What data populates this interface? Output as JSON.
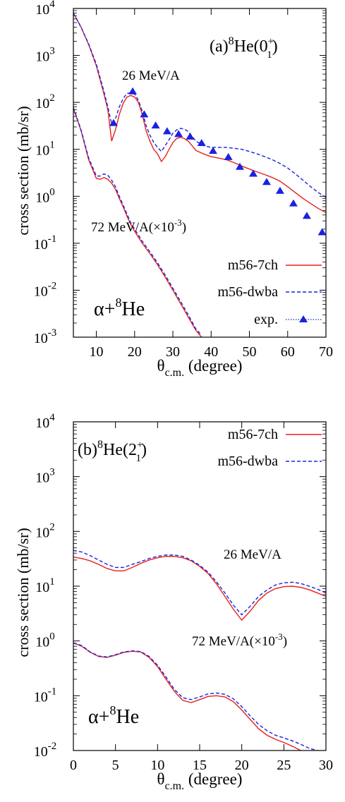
{
  "chart_data": [
    {
      "type": "line",
      "panel_label": "(a)",
      "state": {
        "pre": "8",
        "base": "He(0",
        "sub": "1",
        "sup": "+",
        "post": ")"
      },
      "xlabel": {
        "main": "θ",
        "sub": "c.m.",
        "rest": " (degree)"
      },
      "ylabel": "cross section (mb/sr)",
      "x_range": [
        4,
        70
      ],
      "y_range": [
        0.001,
        10000
      ],
      "y_scale": "log",
      "x_ticks": [
        10,
        20,
        30,
        40,
        50,
        60,
        70
      ],
      "y_ticks": [
        {
          "value": 0.001,
          "mantissa": "10",
          "exp": "-3"
        },
        {
          "value": 0.01,
          "mantissa": "10",
          "exp": "-2"
        },
        {
          "value": 0.1,
          "mantissa": "10",
          "exp": "-1"
        },
        {
          "value": 1,
          "mantissa": "10",
          "exp": "0"
        },
        {
          "value": 10,
          "mantissa": "10",
          "exp": "1"
        },
        {
          "value": 100,
          "mantissa": "10",
          "exp": "2"
        },
        {
          "value": 1000,
          "mantissa": "10",
          "exp": "3"
        },
        {
          "value": 10000,
          "mantissa": "10",
          "exp": "4"
        }
      ],
      "annotations": {
        "energy_high": "26 MeV/A",
        "energy_low_pre": "72 MeV/A(×10",
        "energy_low_exp": "-3",
        "energy_low_post": ")",
        "system_pre": "α+",
        "system_sup": "8",
        "system_post": "He"
      },
      "legend": [
        {
          "label": "m56-7ch",
          "style": "solid",
          "color": "#e8201a"
        },
        {
          "label": "m56-dwba",
          "style": "dashed",
          "color": "#1a22e0"
        },
        {
          "label": "exp.",
          "style": "dotted-triangle",
          "color": "#1a22e0"
        }
      ],
      "series": [
        {
          "name": "m56-7ch",
          "group": "26 MeV/A",
          "color": "#e8201a",
          "style": "solid",
          "x": [
            4,
            6,
            8,
            10,
            12,
            13,
            14,
            15,
            16,
            17,
            18,
            19,
            20,
            21,
            22,
            23,
            24,
            25,
            26,
            27,
            28,
            29,
            30,
            31,
            32,
            33,
            34,
            35,
            36,
            38,
            40,
            42,
            44,
            46,
            48,
            50,
            52,
            54,
            56,
            58,
            60,
            62,
            64,
            66,
            68,
            70
          ],
          "y": [
            8000,
            4000,
            1700,
            600,
            150,
            70,
            15,
            26,
            55,
            95,
            130,
            140,
            130,
            100,
            55,
            25,
            15,
            10,
            8,
            5.5,
            7,
            10,
            14,
            17,
            18,
            17,
            15,
            12,
            9.5,
            8,
            7,
            6.5,
            6,
            5.2,
            4.4,
            3.8,
            3.3,
            2.9,
            2.5,
            2.1,
            1.6,
            1.2,
            0.9,
            0.7,
            0.55,
            0.45
          ]
        },
        {
          "name": "m56-dwba",
          "group": "26 MeV/A",
          "color": "#1a22e0",
          "style": "dashed",
          "x": [
            4,
            6,
            8,
            10,
            12,
            13,
            14,
            15,
            16,
            17,
            18,
            19,
            20,
            21,
            22,
            23,
            24,
            25,
            26,
            27,
            28,
            29,
            30,
            31,
            32,
            33,
            34,
            35,
            36,
            38,
            40,
            42,
            44,
            46,
            48,
            50,
            52,
            54,
            56,
            58,
            60,
            62,
            64,
            66,
            68,
            70
          ],
          "y": [
            8000,
            4000,
            1750,
            650,
            170,
            80,
            35,
            45,
            80,
            120,
            155,
            160,
            150,
            110,
            65,
            32,
            20,
            14,
            11,
            9,
            12,
            16,
            22,
            26,
            28,
            27,
            24,
            19,
            15,
            12,
            11,
            11,
            11,
            10.5,
            10,
            9,
            8,
            7,
            6,
            5,
            4,
            3,
            2.2,
            1.6,
            1.2,
            0.95
          ]
        },
        {
          "name": "m56-7ch",
          "group": "72 MeV/A",
          "color": "#e8201a",
          "style": "solid",
          "x": [
            4,
            6,
            8,
            10,
            11,
            12,
            13,
            14,
            15,
            16,
            17,
            18,
            19,
            20,
            22,
            24,
            26,
            28,
            30,
            32,
            34,
            36,
            37.5
          ],
          "y": [
            75,
            25,
            6,
            2.4,
            2.3,
            2.5,
            2.3,
            1.9,
            1.4,
            0.9,
            0.6,
            0.38,
            0.25,
            0.18,
            0.1,
            0.06,
            0.035,
            0.019,
            0.01,
            0.0052,
            0.0027,
            0.0014,
            0.001
          ]
        },
        {
          "name": "m56-dwba",
          "group": "72 MeV/A",
          "color": "#1a22e0",
          "style": "dashed",
          "x": [
            4,
            6,
            8,
            10,
            11,
            12,
            13,
            14,
            15,
            16,
            17,
            18,
            19,
            20,
            22,
            24,
            26,
            28,
            30,
            32,
            34,
            36,
            37.5
          ],
          "y": [
            78,
            26,
            6.5,
            2.7,
            2.7,
            3.0,
            2.8,
            2.2,
            1.6,
            1.0,
            0.65,
            0.42,
            0.27,
            0.2,
            0.11,
            0.066,
            0.038,
            0.021,
            0.011,
            0.0058,
            0.003,
            0.0015,
            0.0011
          ]
        },
        {
          "name": "exp.",
          "group": "26 MeV/A",
          "color": "#1a22e0",
          "style": "triangle",
          "x": [
            14.5,
            19.5,
            22.5,
            25.5,
            28.5,
            31.5,
            34.5,
            37.5,
            40.5,
            44.5,
            47.5,
            51.0,
            54.5,
            58.0,
            61.5,
            65.0,
            69.0
          ],
          "y": [
            36,
            170,
            55,
            32,
            24,
            21,
            18.5,
            13.5,
            9.2,
            6.8,
            4.2,
            3.0,
            2.0,
            1.3,
            0.7,
            0.38,
            0.17
          ]
        }
      ]
    },
    {
      "type": "line",
      "panel_label": "(b)",
      "state": {
        "pre": "8",
        "base": "He(2",
        "sub": "1",
        "sup": "+",
        "post": ")"
      },
      "xlabel": {
        "main": "θ",
        "sub": "c.m.",
        "rest": " (degree)"
      },
      "ylabel": "cross section (mb/sr)",
      "x_range": [
        0,
        30
      ],
      "y_range": [
        0.01,
        10000
      ],
      "y_scale": "log",
      "x_ticks": [
        0,
        5,
        10,
        15,
        20,
        25,
        30
      ],
      "y_ticks": [
        {
          "value": 0.01,
          "mantissa": "10",
          "exp": "-2"
        },
        {
          "value": 0.1,
          "mantissa": "10",
          "exp": "-1"
        },
        {
          "value": 1,
          "mantissa": "10",
          "exp": "0"
        },
        {
          "value": 10,
          "mantissa": "10",
          "exp": "1"
        },
        {
          "value": 100,
          "mantissa": "10",
          "exp": "2"
        },
        {
          "value": 1000,
          "mantissa": "10",
          "exp": "3"
        },
        {
          "value": 10000,
          "mantissa": "10",
          "exp": "4"
        }
      ],
      "annotations": {
        "energy_high": "26 MeV/A",
        "energy_low_pre": "72 MeV/A(×10",
        "energy_low_exp": "-3",
        "energy_low_post": ")",
        "system_pre": "α+",
        "system_sup": "8",
        "system_post": "He"
      },
      "legend": [
        {
          "label": "m56-7ch",
          "style": "solid",
          "color": "#e8201a"
        },
        {
          "label": "m56-dwba",
          "style": "dashed",
          "color": "#1a22e0"
        }
      ],
      "series": [
        {
          "name": "m56-7ch",
          "group": "26 MeV/A",
          "color": "#e8201a",
          "style": "solid",
          "x": [
            0,
            1,
            2,
            3,
            4,
            5,
            6,
            7,
            8,
            9,
            10,
            11,
            12,
            13,
            14,
            15,
            16,
            17,
            18,
            19,
            20,
            21,
            22,
            23,
            24,
            25,
            26,
            27,
            28,
            29,
            30
          ],
          "y": [
            34,
            32,
            29,
            25,
            21,
            19,
            19,
            22,
            26,
            30,
            33,
            35,
            35,
            33,
            29,
            23,
            17,
            11,
            6.5,
            3.8,
            2.4,
            3.5,
            5.5,
            7.5,
            9,
            9.8,
            10,
            9.5,
            8.6,
            7.5,
            6.5
          ]
        },
        {
          "name": "m56-dwba",
          "group": "26 MeV/A",
          "color": "#1a22e0",
          "style": "dashed",
          "x": [
            0,
            1,
            2,
            3,
            4,
            5,
            6,
            7,
            8,
            9,
            10,
            11,
            12,
            13,
            14,
            15,
            16,
            17,
            18,
            19,
            20,
            21,
            22,
            23,
            24,
            25,
            26,
            27,
            28,
            29,
            30
          ],
          "y": [
            45,
            42,
            36,
            30,
            25,
            22,
            22,
            25,
            28,
            32,
            35,
            37,
            37,
            35,
            30,
            24,
            18,
            12,
            7.5,
            4.5,
            3.0,
            4.3,
            6.5,
            8.5,
            10.5,
            11.5,
            11.8,
            11.2,
            10,
            8.8,
            7.5
          ]
        },
        {
          "name": "m56-7ch",
          "group": "72 MeV/A",
          "color": "#e8201a",
          "style": "solid",
          "x": [
            0,
            1,
            2,
            3,
            4,
            5,
            6,
            7,
            8,
            9,
            10,
            11,
            12,
            13,
            14,
            15,
            16,
            17,
            18,
            19,
            20,
            21,
            22,
            23,
            24,
            25,
            26,
            27,
            28
          ],
          "y": [
            0.92,
            0.8,
            0.62,
            0.52,
            0.5,
            0.55,
            0.62,
            0.65,
            0.63,
            0.5,
            0.34,
            0.2,
            0.12,
            0.082,
            0.075,
            0.085,
            0.097,
            0.1,
            0.095,
            0.078,
            0.055,
            0.037,
            0.025,
            0.019,
            0.016,
            0.014,
            0.012,
            0.01,
            0.0088
          ]
        },
        {
          "name": "m56-dwba",
          "group": "72 MeV/A",
          "color": "#1a22e0",
          "style": "dashed",
          "x": [
            0,
            1,
            2,
            3,
            4,
            5,
            6,
            7,
            8,
            9,
            10,
            11,
            12,
            13,
            14,
            15,
            16,
            17,
            18,
            19,
            20,
            21,
            22,
            23,
            24,
            25,
            26,
            27,
            28,
            29.5
          ],
          "y": [
            0.93,
            0.82,
            0.63,
            0.53,
            0.51,
            0.56,
            0.63,
            0.66,
            0.64,
            0.52,
            0.36,
            0.22,
            0.13,
            0.092,
            0.085,
            0.095,
            0.108,
            0.112,
            0.106,
            0.088,
            0.063,
            0.043,
            0.03,
            0.023,
            0.019,
            0.017,
            0.015,
            0.013,
            0.011,
            0.0095
          ]
        }
      ]
    }
  ]
}
